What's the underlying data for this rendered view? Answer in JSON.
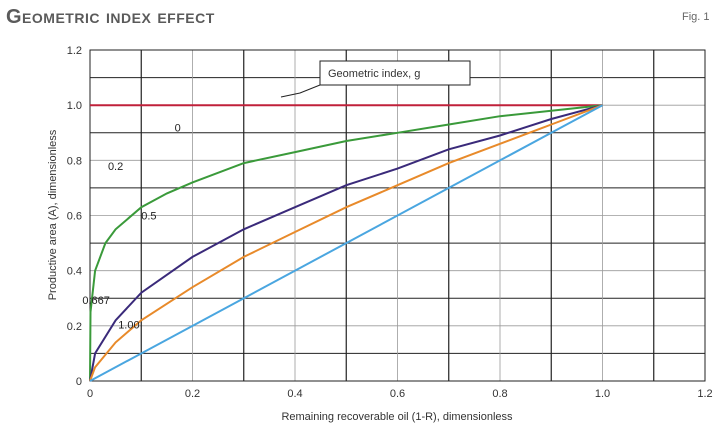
{
  "header": {
    "title": "Geometric index effect",
    "figure_label": "Fig. 1"
  },
  "chart_data": {
    "type": "line",
    "title": "Geometric index effect",
    "xlabel": "Remaining recoverable oil (1-R), dimensionless",
    "ylabel": "Productive area (A), dimensionless",
    "xlim": [
      0,
      1.2
    ],
    "ylim": [
      0,
      1.2
    ],
    "xticks": [
      "0",
      "0.2",
      "0.4",
      "0.6",
      "0.8",
      "1.0",
      "1.2"
    ],
    "yticks": [
      "0",
      "0.2",
      "0.4",
      "0.6",
      "0.8",
      "1.0",
      "1.2"
    ],
    "grid": true,
    "legend_title": "Geometric index, g",
    "series": [
      {
        "name": "0",
        "color": "#c0203a",
        "x": [
          0,
          0.05,
          0.1,
          0.2,
          0.3,
          0.4,
          0.5,
          0.6,
          0.7,
          0.8,
          0.9,
          1.0
        ],
        "y": [
          1.0,
          1.0,
          1.0,
          1.0,
          1.0,
          1.0,
          1.0,
          1.0,
          1.0,
          1.0,
          1.0,
          1.0
        ]
      },
      {
        "name": "0.2",
        "color": "#3a9a3a",
        "x": [
          0,
          0.001,
          0.01,
          0.03,
          0.05,
          0.1,
          0.15,
          0.2,
          0.3,
          0.4,
          0.5,
          0.6,
          0.7,
          0.8,
          0.9,
          1.0
        ],
        "y": [
          0,
          0.25,
          0.4,
          0.5,
          0.55,
          0.63,
          0.68,
          0.72,
          0.79,
          0.83,
          0.87,
          0.9,
          0.93,
          0.96,
          0.98,
          1.0
        ]
      },
      {
        "name": "0.5",
        "color": "#3a2a7a",
        "x": [
          0,
          0.01,
          0.05,
          0.1,
          0.2,
          0.3,
          0.4,
          0.5,
          0.6,
          0.7,
          0.8,
          0.9,
          1.0
        ],
        "y": [
          0,
          0.1,
          0.22,
          0.32,
          0.45,
          0.55,
          0.63,
          0.71,
          0.77,
          0.84,
          0.89,
          0.95,
          1.0
        ]
      },
      {
        "name": "0.667",
        "color": "#e88a2a",
        "x": [
          0,
          0.01,
          0.05,
          0.1,
          0.2,
          0.3,
          0.4,
          0.5,
          0.6,
          0.7,
          0.8,
          0.9,
          1.0
        ],
        "y": [
          0,
          0.05,
          0.14,
          0.22,
          0.34,
          0.45,
          0.54,
          0.63,
          0.71,
          0.79,
          0.86,
          0.93,
          1.0
        ]
      },
      {
        "name": "1.00",
        "color": "#4aa6e0",
        "x": [
          0,
          1.0
        ],
        "y": [
          0,
          1.0
        ]
      }
    ],
    "curve_labels": [
      "0",
      "0.2",
      "0.5",
      "0.667",
      "1.00"
    ]
  }
}
